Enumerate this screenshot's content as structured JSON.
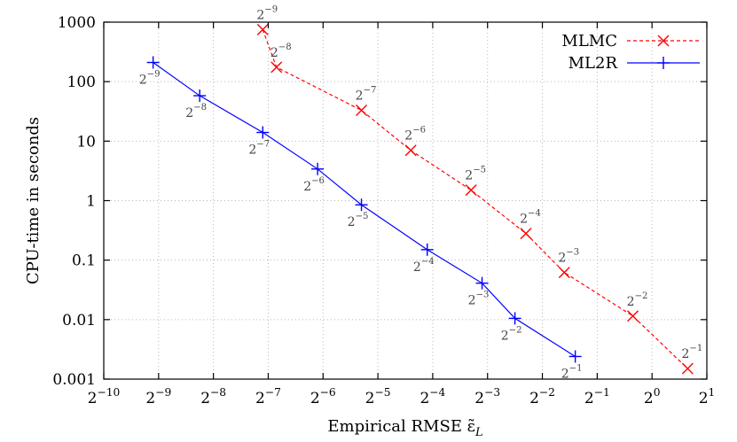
{
  "chart_data": {
    "type": "line",
    "xlabel": "Empirical RMSE ε̃",
    "xlabel_sub": "L",
    "ylabel": "CPU-time in seconds",
    "x_scale": "log2",
    "y_scale": "log10",
    "xlim_log2": [
      -10,
      1
    ],
    "ylim": [
      0.001,
      1000
    ],
    "grid": true,
    "legend_position": "top-right",
    "x_ticks": [
      {
        "base": "2",
        "exp": "−10",
        "log2": -10
      },
      {
        "base": "2",
        "exp": "−9",
        "log2": -9
      },
      {
        "base": "2",
        "exp": "−8",
        "log2": -8
      },
      {
        "base": "2",
        "exp": "−7",
        "log2": -7
      },
      {
        "base": "2",
        "exp": "−6",
        "log2": -6
      },
      {
        "base": "2",
        "exp": "−5",
        "log2": -5
      },
      {
        "base": "2",
        "exp": "−4",
        "log2": -4
      },
      {
        "base": "2",
        "exp": "−3",
        "log2": -3
      },
      {
        "base": "2",
        "exp": "−2",
        "log2": -2
      },
      {
        "base": "2",
        "exp": "−1",
        "log2": -1
      },
      {
        "base": "2",
        "exp": "0",
        "log2": 0
      },
      {
        "base": "2",
        "exp": "1",
        "log2": 1
      }
    ],
    "y_ticks": [
      {
        "label": "0.001",
        "value": 0.001
      },
      {
        "label": "0.01",
        "value": 0.01
      },
      {
        "label": "0.1",
        "value": 0.1
      },
      {
        "label": "1",
        "value": 1
      },
      {
        "label": "10",
        "value": 10
      },
      {
        "label": "100",
        "value": 100
      },
      {
        "label": "1000",
        "value": 1000
      }
    ],
    "series": [
      {
        "name": "MLMC",
        "color": "#ff0000",
        "marker": "x",
        "dash": "dashed",
        "points": [
          {
            "x_log2": -7.1,
            "y": 750,
            "label_base": "2",
            "label_exp": "−9"
          },
          {
            "x_log2": -6.85,
            "y": 175,
            "label_base": "2",
            "label_exp": "−8"
          },
          {
            "x_log2": -5.3,
            "y": 33,
            "label_base": "2",
            "label_exp": "−7"
          },
          {
            "x_log2": -4.4,
            "y": 7,
            "label_base": "2",
            "label_exp": "−6"
          },
          {
            "x_log2": -3.3,
            "y": 1.5,
            "label_base": "2",
            "label_exp": "−5"
          },
          {
            "x_log2": -2.3,
            "y": 0.28,
            "label_base": "2",
            "label_exp": "−4"
          },
          {
            "x_log2": -1.6,
            "y": 0.062,
            "label_base": "2",
            "label_exp": "−3"
          },
          {
            "x_log2": -0.35,
            "y": 0.0115,
            "label_base": "2",
            "label_exp": "−2"
          },
          {
            "x_log2": 0.65,
            "y": 0.0015,
            "label_base": "2",
            "label_exp": "−1"
          }
        ]
      },
      {
        "name": "ML2R",
        "color": "#0000ff",
        "marker": "+",
        "dash": "solid",
        "points": [
          {
            "x_log2": -9.1,
            "y": 210,
            "label_base": "2",
            "label_exp": "−9"
          },
          {
            "x_log2": -8.25,
            "y": 58,
            "label_base": "2",
            "label_exp": "−8"
          },
          {
            "x_log2": -7.1,
            "y": 14,
            "label_base": "2",
            "label_exp": "−7"
          },
          {
            "x_log2": -6.1,
            "y": 3.4,
            "label_base": "2",
            "label_exp": "−6"
          },
          {
            "x_log2": -5.3,
            "y": 0.85,
            "label_base": "2",
            "label_exp": "−5"
          },
          {
            "x_log2": -4.1,
            "y": 0.15,
            "label_base": "2",
            "label_exp": "−4"
          },
          {
            "x_log2": -3.1,
            "y": 0.041,
            "label_base": "2",
            "label_exp": "−3"
          },
          {
            "x_log2": -2.5,
            "y": 0.0105,
            "label_base": "2",
            "label_exp": "−2"
          },
          {
            "x_log2": -1.4,
            "y": 0.0024,
            "label_base": "2",
            "label_exp": "−1"
          }
        ]
      }
    ]
  }
}
